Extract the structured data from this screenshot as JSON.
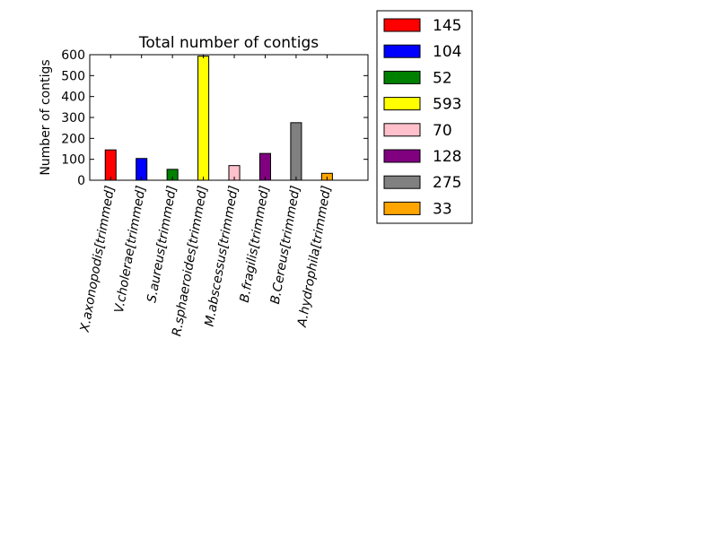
{
  "chart_data": {
    "type": "bar",
    "title": "Total number of contigs",
    "xlabel": "",
    "ylabel": "Number of contigs",
    "categories": [
      "X.axonopodis[trimmed]",
      "V.cholerae[trimmed]",
      "S.aureus[trimmed]",
      "R.sphaeroides[trimmed]",
      "M.abscessus[trimmed]",
      "B.fragilis[trimmed]",
      "B.Cereus[trimmed]",
      "A.hydrophila[trimmed]"
    ],
    "values": [
      145,
      104,
      52,
      593,
      70,
      128,
      275,
      33
    ],
    "colors": [
      "#ff0000",
      "#0000ff",
      "#008000",
      "#ffff00",
      "#ffc0cb",
      "#800080",
      "#808080",
      "#ffa500"
    ],
    "ylim": [
      0,
      600
    ],
    "yticks": [
      0,
      100,
      200,
      300,
      400,
      500,
      600
    ],
    "grid": false,
    "legend": {
      "placement": "outside-right",
      "entries": [
        "145",
        "104",
        "52",
        "593",
        "70",
        "128",
        "275",
        "33"
      ]
    }
  }
}
